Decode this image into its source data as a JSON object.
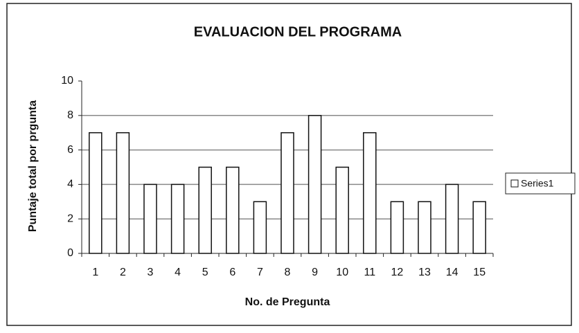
{
  "chart_data": {
    "type": "bar",
    "title": "EVALUACION DEL PROGRAMA",
    "x_label": "No. de Pregunta",
    "y_label": "Puntaje total por prgunta",
    "categories": [
      "1",
      "2",
      "3",
      "4",
      "5",
      "6",
      "7",
      "8",
      "9",
      "10",
      "11",
      "12",
      "13",
      "14",
      "15"
    ],
    "series": [
      {
        "name": "Series1",
        "color": "#ffffff",
        "values": [
          7,
          7,
          4,
          4,
          5,
          5,
          3,
          7,
          8,
          5,
          7,
          3,
          3,
          4,
          3
        ]
      }
    ],
    "ylim": [
      0,
      10
    ],
    "yticks": [
      0,
      2,
      4,
      6,
      8,
      10
    ],
    "grid": true,
    "legend": "right"
  }
}
